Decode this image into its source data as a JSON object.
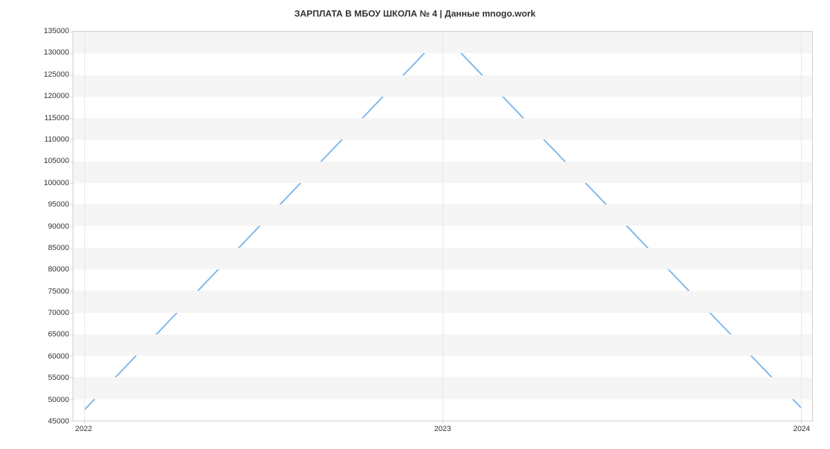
{
  "chart": {
    "type": "line",
    "title": "ЗАРПЛАТА В МБОУ ШКОЛА № 4 | Данные mnogo.work",
    "title_fontsize": 13,
    "title_color": "#333333",
    "background_color": "#ffffff",
    "plot_border_color": "#cccccc",
    "grid_band_color": "#f5f5f5",
    "grid_line_color": "#e6e6e6",
    "line_color": "#7cb5ec",
    "line_width": 2,
    "label_fontsize": 11,
    "label_color": "#333333",
    "x": {
      "categories": [
        "2022",
        "2023",
        "2024"
      ],
      "positions_pct": [
        1.5,
        50,
        98.5
      ]
    },
    "y": {
      "min": 45000,
      "max": 135000,
      "tick_step": 5000,
      "ticks": [
        45000,
        50000,
        55000,
        60000,
        65000,
        70000,
        75000,
        80000,
        85000,
        90000,
        95000,
        100000,
        105000,
        110000,
        115000,
        120000,
        125000,
        130000,
        135000
      ]
    },
    "series": {
      "values": [
        47500,
        134500,
        48000
      ]
    }
  }
}
